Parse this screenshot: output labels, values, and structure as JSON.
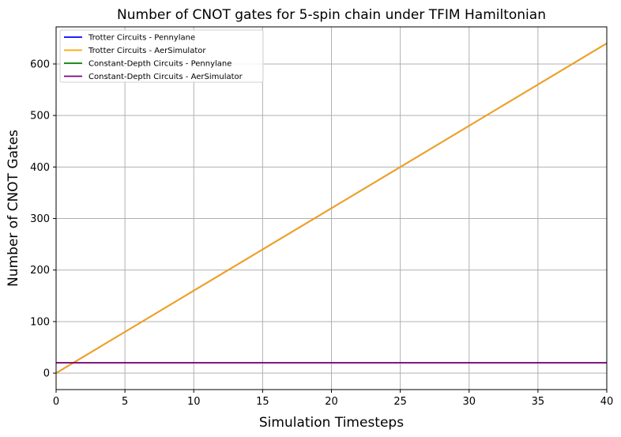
{
  "chart_data": {
    "type": "line",
    "title": "Number of CNOT gates for 5-spin chain under TFIM Hamiltonian",
    "xlabel": "Simulation Timesteps",
    "ylabel": "Number of CNOT Gates",
    "xlim": [
      0,
      40
    ],
    "ylim": [
      -32,
      672
    ],
    "xticks": [
      0,
      5,
      10,
      15,
      20,
      25,
      30,
      35,
      40
    ],
    "yticks": [
      0,
      100,
      200,
      300,
      400,
      500,
      600
    ],
    "grid": true,
    "legend_position": "upper-left",
    "series": [
      {
        "name": "Trotter Circuits - Pennylane",
        "color": "#0000ff",
        "x": [
          0,
          40
        ],
        "y": [
          0,
          640
        ]
      },
      {
        "name": "Trotter Circuits - AerSimulator",
        "color": "#ffa500",
        "x": [
          0,
          40
        ],
        "y": [
          0,
          640
        ]
      },
      {
        "name": "Constant-Depth Circuits - Pennylane",
        "color": "#008000",
        "x": [
          0,
          40
        ],
        "y": [
          20,
          20
        ]
      },
      {
        "name": "Constant-Depth Circuits - AerSimulator",
        "color": "#800080",
        "x": [
          0,
          40
        ],
        "y": [
          20,
          20
        ]
      }
    ]
  }
}
